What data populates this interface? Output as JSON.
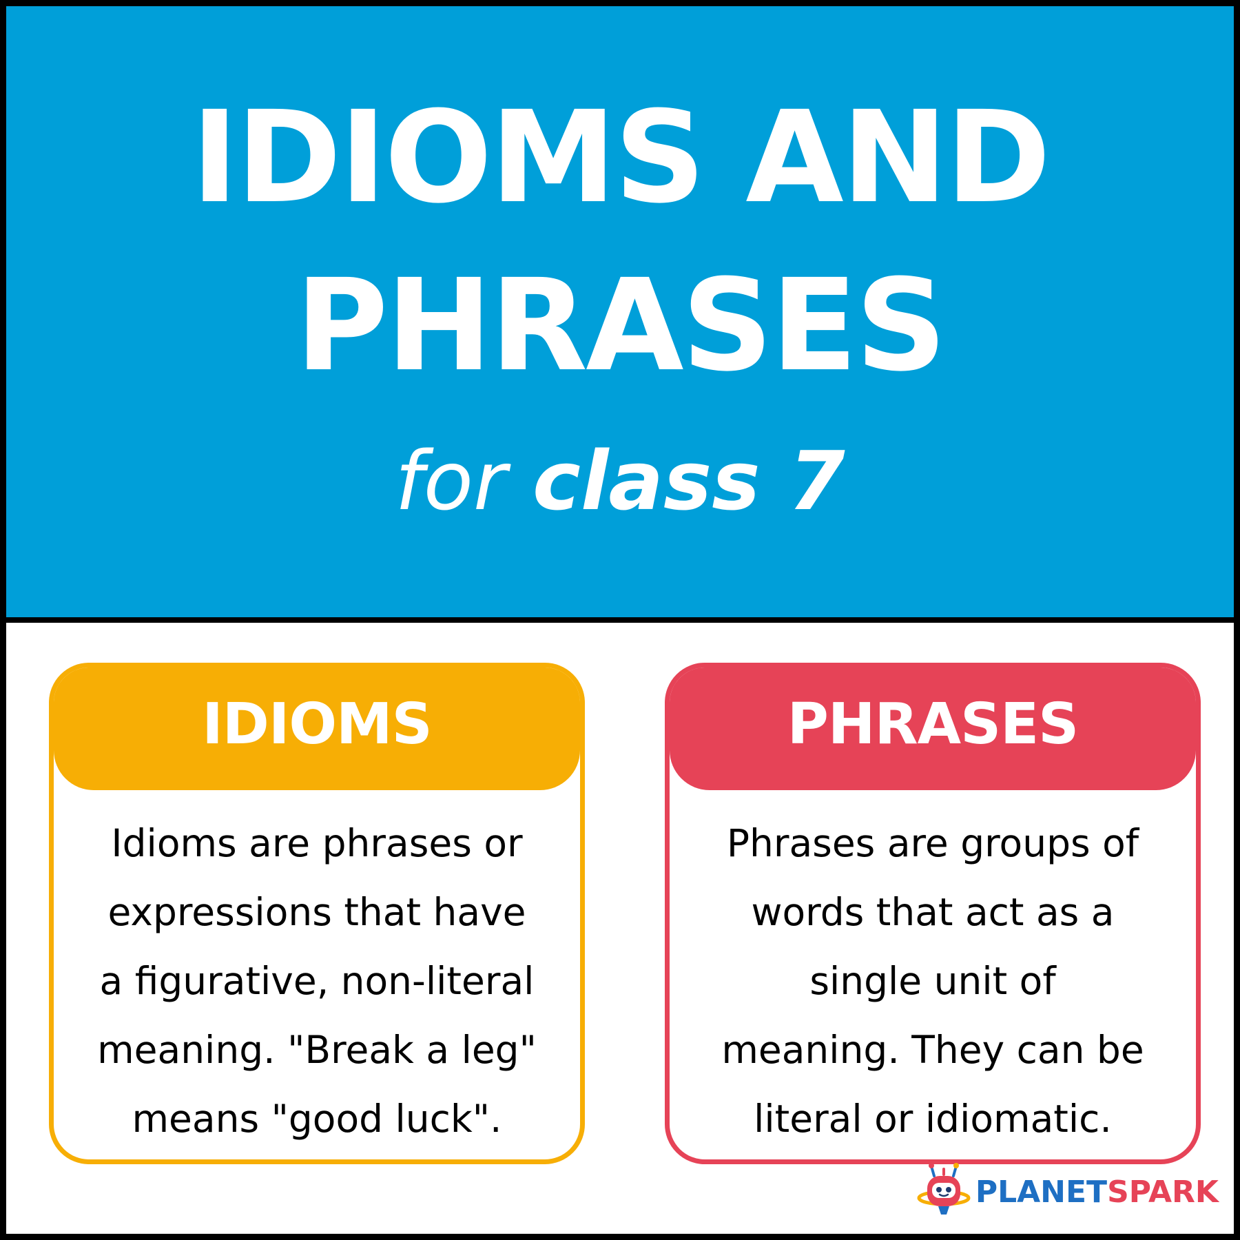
{
  "header": {
    "title_line1": "IDIOMS AND",
    "title_line2": "PHRASES",
    "subtitle_prefix": "for",
    "subtitle_emphasis": "class 7",
    "background": "#009fd9"
  },
  "cards": [
    {
      "title": "IDIOMS",
      "accent": "#f7ae05",
      "lines": [
        "Idioms are phrases or",
        "expressions that have",
        "a figurative, non-literal",
        "meaning. \"Break a leg\"",
        "means \"good luck\"."
      ]
    },
    {
      "title": "PHRASES",
      "accent": "#e64357",
      "lines": [
        "Phrases are groups of",
        "words that act as a",
        "single unit of",
        "meaning. They can be",
        "literal or idiomatic."
      ]
    }
  ],
  "brand": {
    "part1": "PLANET",
    "part2": "SPARK",
    "icon": "robot-logo-icon"
  }
}
